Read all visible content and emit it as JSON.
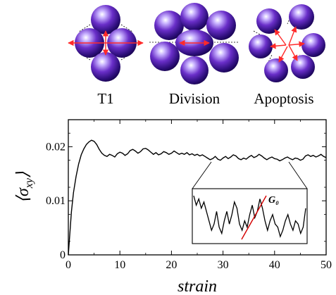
{
  "top_panels": {
    "labels": [
      "T1",
      "Division",
      "Apoptosis"
    ],
    "sphere_color": "#6a2fc9",
    "arrow_color": "#ff2a2a"
  },
  "chart_data": {
    "type": "line",
    "xlabel": "strain",
    "ylabel": "⟨σ_xy⟩",
    "xlim": [
      0,
      50
    ],
    "ylim": [
      0,
      0.025
    ],
    "xticks": [
      0,
      10,
      20,
      30,
      40,
      50
    ],
    "yticks": [
      0,
      0.01,
      0.02
    ],
    "xtick_labels": [
      "0",
      "10",
      "20",
      "30",
      "40",
      "50"
    ],
    "ytick_labels": [
      "0",
      "0.01",
      "0.02"
    ],
    "grid": false,
    "series": [
      {
        "color": "#000000",
        "points": [
          [
            0,
            0.0
          ],
          [
            0.3,
            0.004
          ],
          [
            0.6,
            0.008
          ],
          [
            1,
            0.0115
          ],
          [
            1.5,
            0.0145
          ],
          [
            2,
            0.0168
          ],
          [
            2.5,
            0.0185
          ],
          [
            3,
            0.0196
          ],
          [
            3.5,
            0.0204
          ],
          [
            4,
            0.0209
          ],
          [
            4.5,
            0.0212
          ],
          [
            5,
            0.021
          ],
          [
            5.5,
            0.0204
          ],
          [
            6,
            0.0195
          ],
          [
            6.5,
            0.0188
          ],
          [
            7,
            0.0184
          ],
          [
            7.5,
            0.0182
          ],
          [
            8,
            0.0186
          ],
          [
            8.5,
            0.0184
          ],
          [
            9,
            0.0181
          ],
          [
            9.5,
            0.0187
          ],
          [
            10,
            0.019
          ],
          [
            10.5,
            0.0188
          ],
          [
            11,
            0.0184
          ],
          [
            11.5,
            0.0187
          ],
          [
            12,
            0.0193
          ],
          [
            12.5,
            0.0195
          ],
          [
            13,
            0.0192
          ],
          [
            13.5,
            0.0188
          ],
          [
            14,
            0.0191
          ],
          [
            14.5,
            0.0196
          ],
          [
            15,
            0.0197
          ],
          [
            15.5,
            0.0194
          ],
          [
            16,
            0.019
          ],
          [
            16.5,
            0.0186
          ],
          [
            17,
            0.0189
          ],
          [
            17.5,
            0.0185
          ],
          [
            18,
            0.0187
          ],
          [
            18.5,
            0.0191
          ],
          [
            19,
            0.0189
          ],
          [
            19.5,
            0.0186
          ],
          [
            20,
            0.0188
          ],
          [
            20.5,
            0.0192
          ],
          [
            21,
            0.0189
          ],
          [
            21.5,
            0.0186
          ],
          [
            22,
            0.0188
          ],
          [
            22.5,
            0.0186
          ],
          [
            23,
            0.0189
          ],
          [
            23.5,
            0.0185
          ],
          [
            24,
            0.0187
          ],
          [
            24.5,
            0.0184
          ],
          [
            25,
            0.0186
          ],
          [
            25.5,
            0.0183
          ],
          [
            26,
            0.0185
          ],
          [
            26.5,
            0.0182
          ],
          [
            27,
            0.0179
          ],
          [
            27.5,
            0.0176
          ],
          [
            28,
            0.0178
          ],
          [
            28.5,
            0.0182
          ],
          [
            29,
            0.0177
          ],
          [
            29.5,
            0.0175
          ],
          [
            30,
            0.0179
          ],
          [
            30.5,
            0.0182
          ],
          [
            31,
            0.0178
          ],
          [
            31.5,
            0.0181
          ],
          [
            32,
            0.0185
          ],
          [
            32.5,
            0.0183
          ],
          [
            33,
            0.0178
          ],
          [
            33.5,
            0.0176
          ],
          [
            34,
            0.0179
          ],
          [
            34.5,
            0.0177
          ],
          [
            35,
            0.0181
          ],
          [
            35.5,
            0.0184
          ],
          [
            36,
            0.018
          ],
          [
            36.5,
            0.0182
          ],
          [
            37,
            0.0186
          ],
          [
            37.5,
            0.0183
          ],
          [
            38,
            0.0179
          ],
          [
            38.5,
            0.0176
          ],
          [
            39,
            0.0179
          ],
          [
            39.5,
            0.0181
          ],
          [
            40,
            0.0178
          ],
          [
            40.5,
            0.0177
          ],
          [
            41,
            0.0174
          ],
          [
            41.5,
            0.0176
          ],
          [
            42,
            0.0179
          ],
          [
            42.5,
            0.0181
          ],
          [
            43,
            0.0178
          ],
          [
            43.5,
            0.0176
          ],
          [
            44,
            0.0179
          ],
          [
            44.5,
            0.0178
          ],
          [
            45,
            0.0175
          ],
          [
            45.5,
            0.0177
          ],
          [
            46,
            0.0183
          ],
          [
            46.5,
            0.0185
          ],
          [
            47,
            0.0182
          ],
          [
            47.5,
            0.0184
          ],
          [
            48,
            0.0181
          ],
          [
            48.5,
            0.0183
          ],
          [
            49,
            0.0186
          ],
          [
            49.5,
            0.0182
          ],
          [
            50,
            0.018
          ]
        ]
      }
    ],
    "inset": {
      "zoom_xrange": [
        24,
        46
      ],
      "label": "G₀",
      "fit_line_color": "#d40000"
    }
  }
}
